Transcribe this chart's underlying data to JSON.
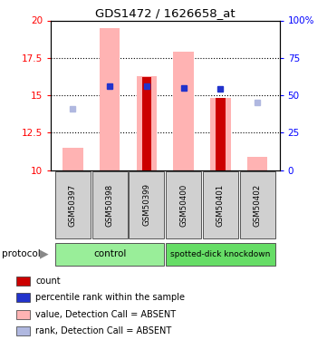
{
  "title": "GDS1472 / 1626658_at",
  "samples": [
    "GSM50397",
    "GSM50398",
    "GSM50399",
    "GSM50400",
    "GSM50401",
    "GSM50402"
  ],
  "ylim_left": [
    10,
    20
  ],
  "ylim_right": [
    0,
    100
  ],
  "yticks_left": [
    10,
    12.5,
    15,
    17.5,
    20
  ],
  "yticks_right": [
    0,
    25,
    50,
    75,
    100
  ],
  "ytick_labels_left": [
    "10",
    "12.5",
    "15",
    "17.5",
    "20"
  ],
  "ytick_labels_right": [
    "0",
    "25",
    "50",
    "75",
    "100%"
  ],
  "pink_bar_values": [
    11.5,
    19.5,
    16.3,
    17.9,
    14.8,
    10.9
  ],
  "red_bar_values": [
    null,
    null,
    16.2,
    null,
    14.8,
    null
  ],
  "blue_square_values": [
    null,
    15.6,
    15.6,
    15.5,
    15.4,
    null
  ],
  "lavender_square_values": [
    14.1,
    null,
    null,
    null,
    null,
    14.5
  ],
  "pink_bar_color": "#ffb3b3",
  "red_bar_color": "#cc0000",
  "blue_square_color": "#2233cc",
  "lavender_square_color": "#b0b8e0",
  "ctrl_color": "#99ee99",
  "kd_color": "#66dd66",
  "grid_color": "#000000",
  "legend_items": [
    {
      "color": "#cc0000",
      "label": "count"
    },
    {
      "color": "#2233cc",
      "label": "percentile rank within the sample"
    },
    {
      "color": "#ffb3b3",
      "label": "value, Detection Call = ABSENT"
    },
    {
      "color": "#b0b8e0",
      "label": "rank, Detection Call = ABSENT"
    }
  ]
}
